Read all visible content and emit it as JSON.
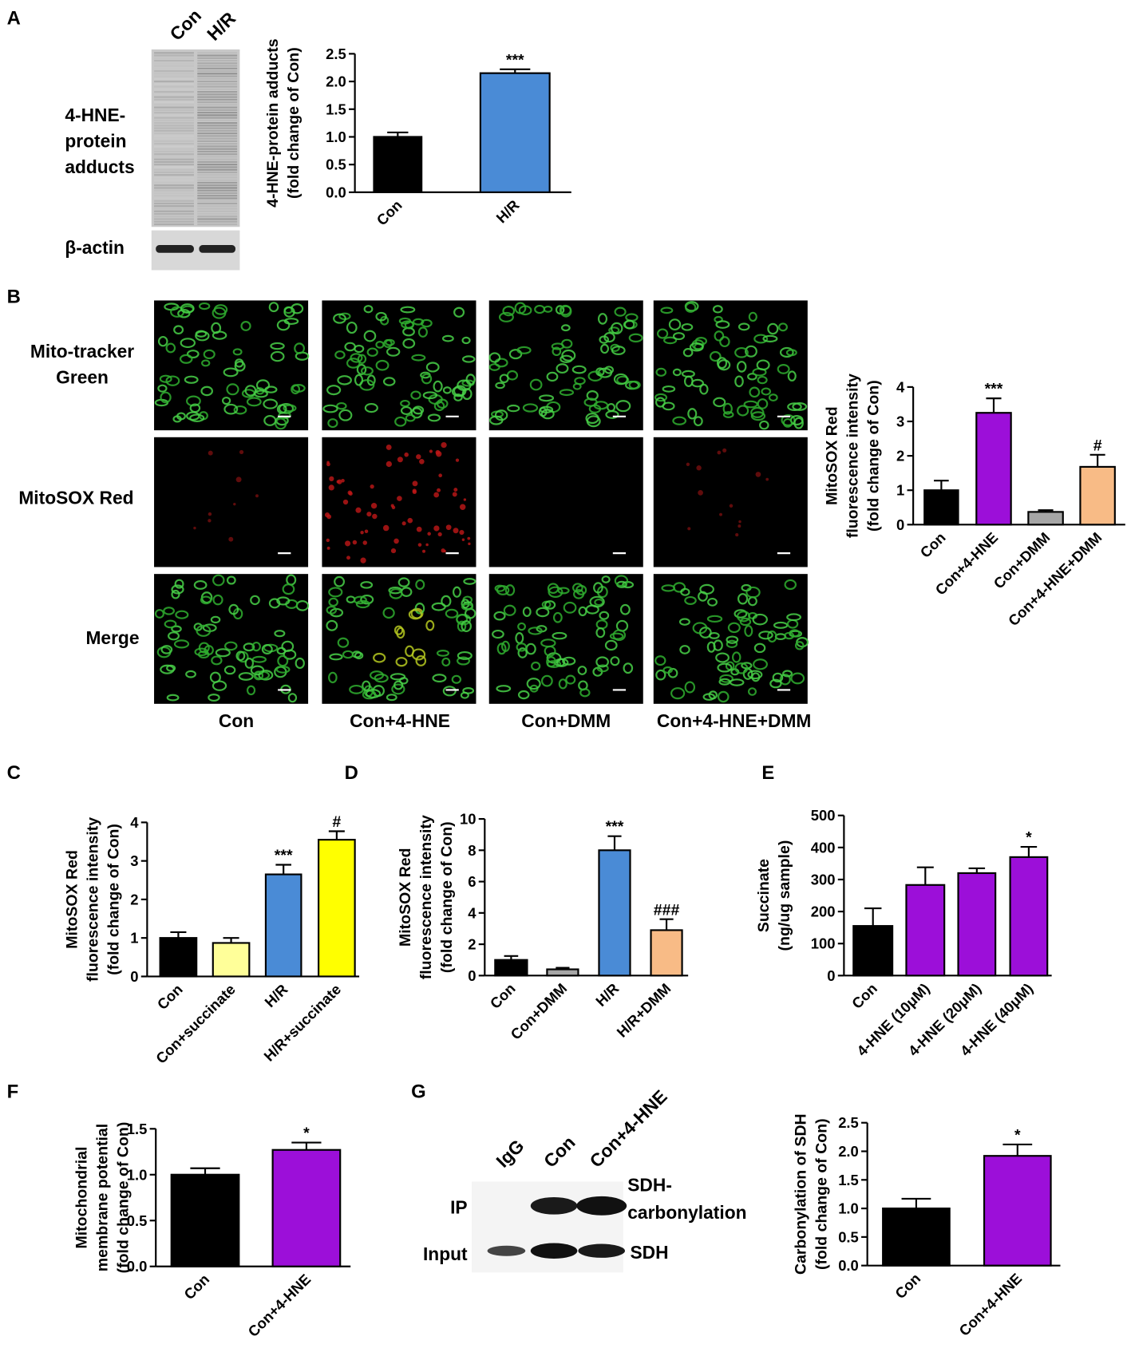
{
  "chart_data": [
    {
      "type": "bar",
      "ylabel": [
        "4-HNE-protein adducts",
        "(fold change of Con)"
      ],
      "categories": [
        "Con",
        "H/R"
      ],
      "values": [
        1.0,
        2.15
      ],
      "errors": [
        0.08,
        0.07
      ],
      "colors": [
        "#000000",
        "#4a8bd6"
      ],
      "sig": [
        null,
        "***"
      ],
      "ylim": [
        0,
        2.5
      ],
      "yticks": [
        {
          "value": 0,
          "label": "0.0"
        },
        0.5,
        {
          "value": 1,
          "label": "1.0"
        },
        1.5,
        {
          "value": 2,
          "label": "2.0"
        },
        2.5
      ]
    },
    {
      "type": "bar",
      "ylabel": [
        "MitoSOX Red",
        "fluorescence intensity",
        "(fold change of Con)"
      ],
      "categories": [
        "Con",
        "Con+4-HNE",
        "Con+DMM",
        "Con+4-HNE+DMM"
      ],
      "values": [
        1.0,
        3.25,
        0.37,
        1.68
      ],
      "errors": [
        0.28,
        0.42,
        0.05,
        0.35
      ],
      "colors": [
        "#000000",
        "#9c0fd9",
        "#a6a6a6",
        "#f8bb86"
      ],
      "sig": [
        null,
        "***",
        null,
        "#"
      ],
      "ylim": [
        0,
        4
      ],
      "yticks": [
        0,
        1,
        2,
        3,
        4
      ]
    },
    {
      "type": "bar",
      "ylabel": [
        "MitoSOX Red",
        "fluorescence intensity",
        "(fold change of Con)"
      ],
      "categories": [
        "Con",
        "Con+succinate",
        "H/R",
        "H/R+succinate"
      ],
      "values": [
        1.0,
        0.87,
        2.65,
        3.55
      ],
      "errors": [
        0.15,
        0.13,
        0.25,
        0.22
      ],
      "colors": [
        "#000000",
        "#ffff99",
        "#4a8bd6",
        "#ffff00"
      ],
      "sig": [
        null,
        null,
        "***",
        "#"
      ],
      "ylim": [
        0,
        4
      ],
      "yticks": [
        0,
        1,
        2,
        3,
        4
      ]
    },
    {
      "type": "bar",
      "ylabel": [
        "MitoSOX Red",
        "fluorescence intensity",
        "(fold change of Con)"
      ],
      "categories": [
        "Con",
        "Con+DMM",
        "H/R",
        "H/R+DMM"
      ],
      "values": [
        1.0,
        0.4,
        8.0,
        2.9
      ],
      "errors": [
        0.25,
        0.1,
        0.9,
        0.7
      ],
      "colors": [
        "#000000",
        "#a6a6a6",
        "#4a8bd6",
        "#f8bb86"
      ],
      "sig": [
        null,
        null,
        "***",
        "###"
      ],
      "ylim": [
        0,
        10
      ],
      "yticks": [
        0,
        2,
        4,
        6,
        8,
        10
      ]
    },
    {
      "type": "bar",
      "ylabel": [
        "Succinate",
        "(ng/ug sample)"
      ],
      "categories": [
        "Con",
        "4-HNE (10μM)",
        "4-HNE (20μM)",
        "4-HNE (40μM)"
      ],
      "values": [
        155,
        283,
        320,
        370
      ],
      "errors": [
        55,
        55,
        15,
        32
      ],
      "colors": [
        "#000000",
        "#9c0fd9",
        "#9c0fd9",
        "#9c0fd9"
      ],
      "sig": [
        null,
        null,
        null,
        "*"
      ],
      "ylim": [
        0,
        500
      ],
      "yticks": [
        0,
        100,
        200,
        300,
        400,
        500
      ]
    },
    {
      "type": "bar",
      "ylabel": [
        "Mitochondrial",
        "membrane potential",
        "(fold change of Con)"
      ],
      "categories": [
        "Con",
        "Con+4-HNE"
      ],
      "values": [
        1.0,
        1.27
      ],
      "errors": [
        0.07,
        0.08
      ],
      "colors": [
        "#000000",
        "#9c0fd9"
      ],
      "sig": [
        null,
        "*"
      ],
      "ylim": [
        0,
        1.5
      ],
      "yticks": [
        {
          "value": 0,
          "label": "0.0"
        },
        0.5,
        {
          "value": 1,
          "label": "1.0"
        },
        1.5
      ]
    },
    {
      "type": "bar",
      "ylabel": [
        "Carbonylation of SDH",
        "(fold change of Con)"
      ],
      "categories": [
        "Con",
        "Con+4-HNE"
      ],
      "values": [
        1.0,
        1.92
      ],
      "errors": [
        0.17,
        0.2
      ],
      "colors": [
        "#000000",
        "#9c0fd9"
      ],
      "sig": [
        null,
        "*"
      ],
      "ylim": [
        0,
        2.5
      ],
      "yticks": [
        {
          "value": 0,
          "label": "0.0"
        },
        0.5,
        {
          "value": 1,
          "label": "1.0"
        },
        1.5,
        {
          "value": 2,
          "label": "2.0"
        },
        2.5
      ]
    }
  ],
  "figure": {
    "panel_letters": [
      "A",
      "B",
      "C",
      "D",
      "E",
      "F",
      "G"
    ],
    "blot_a": {
      "lanes": [
        "Con",
        "H/R"
      ],
      "rows": [
        [
          "4-HNE-",
          "protein",
          "adducts"
        ],
        [
          "β-actin"
        ]
      ]
    },
    "images_b": {
      "rows": [
        [
          "Mito-tracker",
          "Green"
        ],
        [
          "MitoSOX Red"
        ],
        [
          "Merge"
        ]
      ],
      "columns": [
        "Con",
        "Con+4-HNE",
        "Con+DMM",
        "Con+4-HNE+DMM"
      ]
    },
    "blot_g": {
      "lanes": [
        "IgG",
        "Con",
        "Con+4-HNE"
      ],
      "rows": [
        "IP",
        "Input"
      ],
      "bands": [
        [
          "SDH-",
          "carbonylation"
        ],
        [
          "SDH"
        ]
      ]
    }
  }
}
